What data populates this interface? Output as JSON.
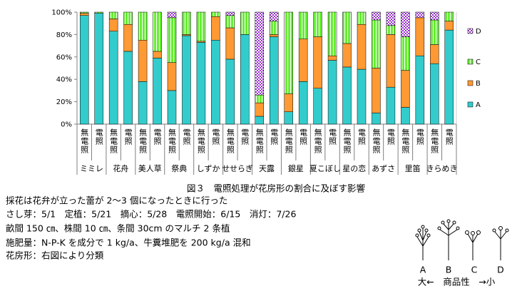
{
  "chart_data": {
    "type": "stacked-bar-100",
    "categories": [
      "無電照",
      "電照",
      "無電照",
      "電照",
      "無電照",
      "電照",
      "無電照",
      "電照",
      "無電照",
      "電照",
      "無電照",
      "電照",
      "無電照",
      "電照",
      "無電照",
      "電照",
      "無電照",
      "電照",
      "無電照",
      "電照",
      "無電照",
      "電照",
      "無電照",
      "電照",
      "無電照",
      "電照"
    ],
    "groups": [
      "ミミレ",
      "花舟",
      "美人草",
      "祭典",
      "しずか",
      "せせらぎ",
      "天露",
      "銀星",
      "夏こぼし",
      "星の恋",
      "あずさ",
      "里笛",
      "きらめき"
    ],
    "series": [
      {
        "name": "A",
        "color": "#33cccc",
        "values": [
          97,
          99,
          83,
          65,
          38,
          59,
          30,
          79,
          73,
          75,
          58,
          80,
          7,
          78,
          11,
          38,
          32,
          57,
          51,
          49,
          10,
          33,
          15,
          61,
          54,
          84
        ]
      },
      {
        "name": "B",
        "color": "#ff9933",
        "values": [
          2,
          0,
          11,
          24,
          37,
          6,
          25,
          1,
          1,
          21,
          28,
          0,
          12,
          2,
          16,
          38,
          46,
          4,
          21,
          40,
          40,
          47,
          33,
          34,
          17,
          8
        ]
      },
      {
        "name": "C",
        "color": "#66ee33",
        "values": [
          1,
          1,
          6,
          11,
          25,
          35,
          40,
          20,
          26,
          4,
          11,
          20,
          7,
          12,
          73,
          24,
          22,
          39,
          28,
          11,
          43,
          8,
          30,
          0,
          22,
          8
        ]
      },
      {
        "name": "D",
        "color": "#9933cc",
        "values": [
          0,
          0,
          0,
          0,
          0,
          0,
          5,
          0,
          0,
          0,
          3,
          0,
          74,
          8,
          0,
          0,
          0,
          0,
          0,
          0,
          7,
          12,
          22,
          5,
          7,
          0
        ]
      }
    ],
    "ylim": [
      0,
      100
    ],
    "yticks": [
      {
        "value": 0,
        "label": "0%"
      },
      {
        "value": 20,
        "label": "20%"
      },
      {
        "value": 40,
        "label": "40%"
      },
      {
        "value": 60,
        "label": "60%"
      },
      {
        "value": 80,
        "label": "80%"
      },
      {
        "value": 100,
        "label": "100%"
      }
    ],
    "legend": "right"
  },
  "caption": "図３　電照処理が花房形の割合に及ぼす影響",
  "notes": [
    "採花は花弁が立った蕾が 2～3 個になったときに行った",
    "さし芽：5/1　定植：5/21　摘心：5/28　電照開始：6/15　消灯：7/26",
    "畝間 150 ㎝、株間 10 ㎝、条間 30cm のマルチ 2 条植",
    "施肥量：N-P-K を成分で 1 kg/a、牛糞堆肥を 200 kg/a 混和",
    "花房形：右図により分類"
  ],
  "diagram": {
    "labels": [
      "A",
      "B",
      "C",
      "D"
    ],
    "scale": "大←　商品性　→小"
  }
}
